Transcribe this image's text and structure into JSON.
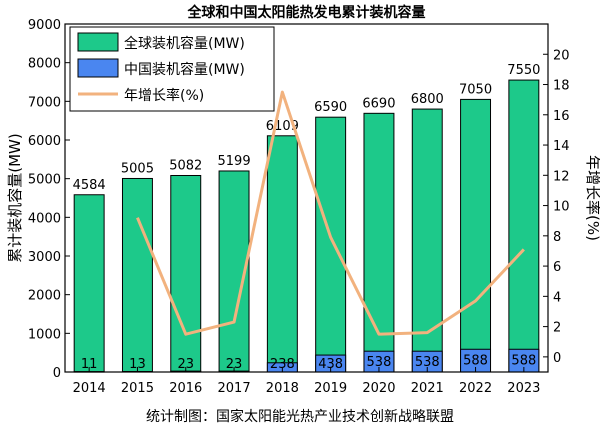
{
  "chart_data": {
    "type": "bar",
    "title": "全球和中国太阳能热发电累计装机容量",
    "categories": [
      "2014",
      "2015",
      "2016",
      "2017",
      "2018",
      "2019",
      "2020",
      "2021",
      "2022",
      "2023"
    ],
    "series": [
      {
        "name": "全球装机容量(MW)",
        "type": "bar",
        "axis": "left",
        "color": "#1dc98a",
        "values": [
          4584,
          5005,
          5082,
          5199,
          6109,
          6590,
          6690,
          6800,
          7050,
          7550
        ],
        "labels": [
          "4584",
          "5005",
          "5082",
          "5199",
          "6109",
          "6590",
          "6690",
          "6800",
          "7050",
          "7550"
        ]
      },
      {
        "name": "中国装机容量(MW)",
        "type": "bar",
        "axis": "left",
        "color": "#4a86f0",
        "values": [
          11,
          13,
          23,
          23,
          238,
          438,
          538,
          538,
          588,
          588
        ],
        "labels": [
          "11",
          "13",
          "23",
          "23",
          "238",
          "438",
          "538",
          "538",
          "588",
          "588"
        ]
      },
      {
        "name": "年增长率(%)",
        "type": "line",
        "axis": "right",
        "color": "#f2b27e",
        "values": [
          null,
          9.2,
          1.5,
          2.3,
          17.5,
          7.9,
          1.5,
          1.6,
          3.7,
          7.1
        ]
      }
    ],
    "ylabel": "累计装机容量(MW)",
    "y2label": "年增长率(%)",
    "ylim": [
      0,
      9000
    ],
    "yticks": [
      "0",
      "1000",
      "2000",
      "3000",
      "4000",
      "5000",
      "6000",
      "7000",
      "8000",
      "9000"
    ],
    "y2lim": [
      -1,
      22
    ],
    "y2ticks": [
      "0",
      "2",
      "4",
      "6",
      "8",
      "10",
      "12",
      "14",
      "16",
      "18",
      "20"
    ],
    "legend_position": "top-left",
    "grid": false
  },
  "source_note": "统计制图：国家太阳能光热产业技术创新战略联盟"
}
